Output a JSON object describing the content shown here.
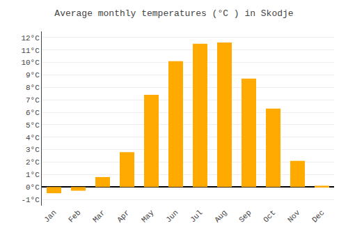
{
  "chart_data": {
    "type": "bar",
    "title": "Average monthly temperatures (°C ) in Skodje",
    "categories": [
      "Jan",
      "Feb",
      "Mar",
      "Apr",
      "May",
      "Jun",
      "Jul",
      "Aug",
      "Sep",
      "Oct",
      "Nov",
      "Dec"
    ],
    "values": [
      -0.5,
      -0.3,
      0.8,
      2.8,
      7.4,
      10.1,
      11.5,
      11.6,
      8.7,
      6.3,
      2.1,
      0.1
    ],
    "color": "#FFAA00",
    "ylim": [
      -1.5,
      12.5
    ],
    "yticks": [
      {
        "value": -1,
        "label": "-1°C"
      },
      {
        "value": 0,
        "label": "0°C"
      },
      {
        "value": 1,
        "label": "1°C"
      },
      {
        "value": 2,
        "label": "2°C"
      },
      {
        "value": 3,
        "label": "3°C"
      },
      {
        "value": 4,
        "label": "4°C"
      },
      {
        "value": 5,
        "label": "5°C"
      },
      {
        "value": 6,
        "label": "6°C"
      },
      {
        "value": 7,
        "label": "7°C"
      },
      {
        "value": 8,
        "label": "8°C"
      },
      {
        "value": 9,
        "label": "9°C"
      },
      {
        "value": 10,
        "label": "10°C"
      },
      {
        "value": 11,
        "label": "11°C"
      },
      {
        "value": 12,
        "label": "12°C"
      }
    ],
    "grid": true
  }
}
